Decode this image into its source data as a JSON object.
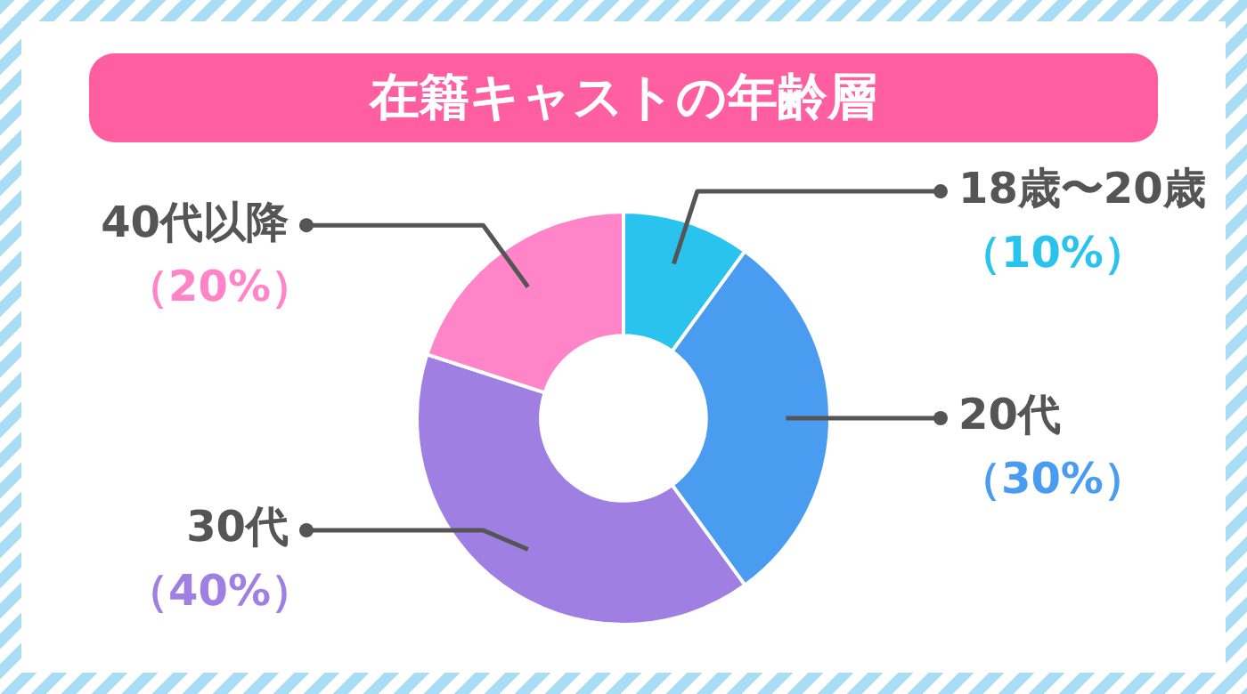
{
  "chart_data": {
    "type": "donut",
    "title": "在籍キャストの年齢層",
    "categories": [
      "18歳〜20歳",
      "20代",
      "30代",
      "40代以降"
    ],
    "values": [
      10,
      30,
      40,
      20
    ],
    "value_labels": [
      "（10%）",
      "（30%）",
      "（40%）",
      "（20%）"
    ],
    "colors": [
      "#29c3ed",
      "#4a9cf0",
      "#a07fe2",
      "#ff85c8"
    ],
    "legend": false
  }
}
